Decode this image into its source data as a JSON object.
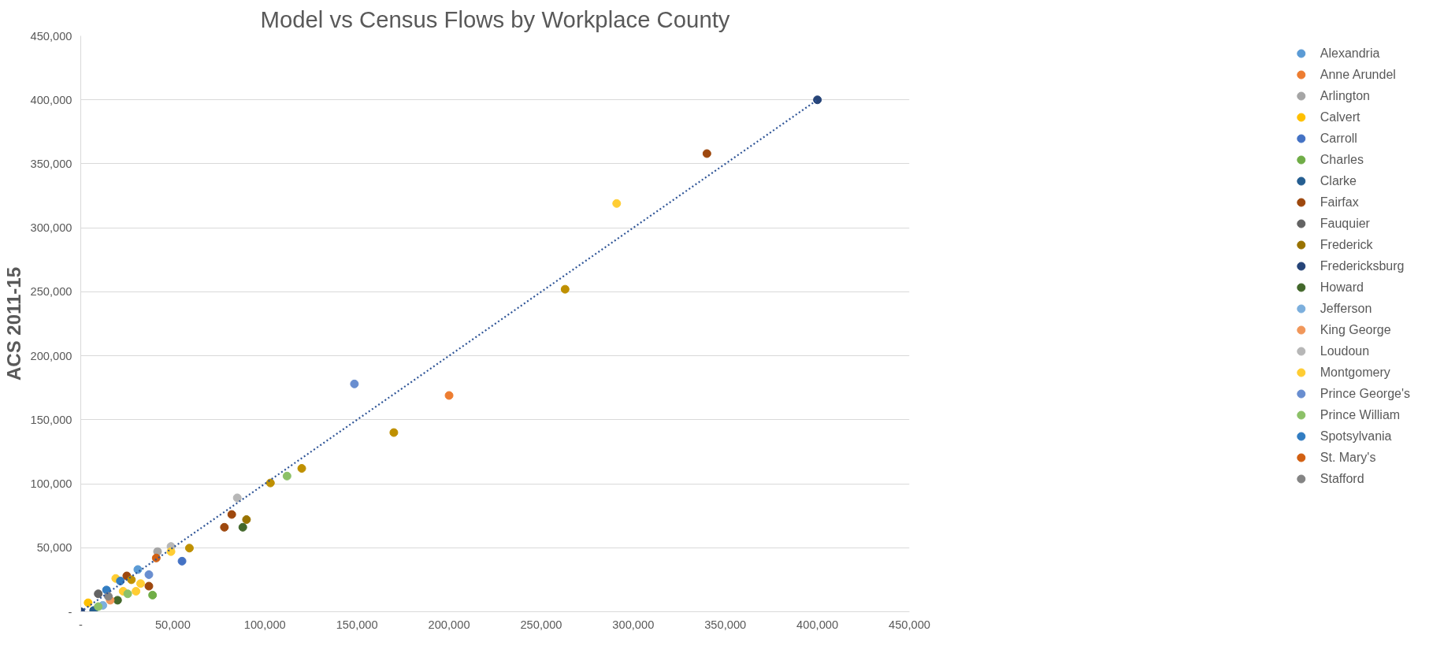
{
  "chart_data": {
    "type": "scatter",
    "title": "Model vs Census Flows by Workplace County",
    "ylabel": "ACS 2011-15",
    "xlim": [
      0,
      450000
    ],
    "ylim": [
      0,
      450000
    ],
    "xticks": [
      {
        "value": 0,
        "label": "-"
      },
      {
        "value": 50000,
        "label": "50,000"
      },
      {
        "value": 100000,
        "label": "100,000"
      },
      {
        "value": 150000,
        "label": "150,000"
      },
      {
        "value": 200000,
        "label": "200,000"
      },
      {
        "value": 250000,
        "label": "250,000"
      },
      {
        "value": 300000,
        "label": "300,000"
      },
      {
        "value": 350000,
        "label": "350,000"
      },
      {
        "value": 400000,
        "label": "400,000"
      },
      {
        "value": 450000,
        "label": "450,000"
      }
    ],
    "yticks": [
      {
        "value": 0,
        "label": "-"
      },
      {
        "value": 50000,
        "label": "50,000"
      },
      {
        "value": 100000,
        "label": "100,000"
      },
      {
        "value": 150000,
        "label": "150,000"
      },
      {
        "value": 200000,
        "label": "200,000"
      },
      {
        "value": 250000,
        "label": "250,000"
      },
      {
        "value": 300000,
        "label": "300,000"
      },
      {
        "value": 350000,
        "label": "350,000"
      },
      {
        "value": 400000,
        "label": "400,000"
      },
      {
        "value": 450000,
        "label": "450,000"
      }
    ],
    "grid": "y",
    "legend": "right",
    "marker": "circle",
    "series": [
      {
        "name": "Alexandria",
        "color": "#5b9bd5",
        "x": [
          31000
        ],
        "values": [
          33000
        ]
      },
      {
        "name": "Anne Arundel",
        "color": "#ed7d31",
        "x": [
          200000
        ],
        "values": [
          169000
        ]
      },
      {
        "name": "Arlington",
        "color": "#a5a5a5",
        "x": [
          41700
        ],
        "values": [
          47000
        ]
      },
      {
        "name": "Calvert",
        "color": "#ffc000",
        "x": [
          4000
        ],
        "values": [
          7000
        ]
      },
      {
        "name": "Carroll",
        "color": "#4472c4",
        "x": [
          55000
        ],
        "values": [
          39500
        ]
      },
      {
        "name": "Charles",
        "color": "#70ad47",
        "x": [
          39000
        ],
        "values": [
          13000
        ]
      },
      {
        "name": "Clarke",
        "color": "#255e91",
        "x": [
          7000
        ],
        "values": [
          1000
        ]
      },
      {
        "name": "Fairfax",
        "color": "#9e480e",
        "x": [
          340000,
          82000,
          78000,
          25000,
          37000
        ],
        "values": [
          358000,
          76000,
          66000,
          28000,
          20000
        ]
      },
      {
        "name": "Fauquier",
        "color": "#636363",
        "x": [
          9500
        ],
        "values": [
          14000
        ]
      },
      {
        "name": "Frederick",
        "color": "#997300",
        "x": [
          90000
        ],
        "values": [
          72000
        ]
      },
      {
        "name": "Fredericksburg",
        "color": "#264478",
        "x": [
          400000,
          0
        ],
        "values": [
          400000,
          0
        ]
      },
      {
        "name": "Howard",
        "color": "#43682b",
        "x": [
          88000,
          20000
        ],
        "values": [
          66000,
          9000
        ]
      },
      {
        "name": "Jefferson",
        "color": "#7cafdd",
        "x": [
          12000
        ],
        "values": [
          5000
        ]
      },
      {
        "name": "King George",
        "color": "#f1975a",
        "x": [
          16000
        ],
        "values": [
          9000
        ]
      },
      {
        "name": "Loudoun",
        "color": "#b7b7b7",
        "x": [
          85000,
          49000
        ],
        "values": [
          89000,
          51000
        ]
      },
      {
        "name": "Montgomery",
        "color": "#ffcd33",
        "x": [
          291000,
          49000,
          19000,
          30000,
          23000,
          32500
        ],
        "values": [
          319000,
          47000,
          26000,
          16000,
          16000,
          22000
        ]
      },
      {
        "name": "Prince George's",
        "color": "#698ed0",
        "x": [
          148600,
          37000
        ],
        "values": [
          178000,
          29000
        ]
      },
      {
        "name": "Prince William",
        "color": "#8cc168",
        "x": [
          112000,
          25500,
          9500
        ],
        "values": [
          106000,
          14000,
          4000
        ]
      },
      {
        "name": "Spotsylvania",
        "color": "#327dc2",
        "x": [
          14000,
          21500
        ],
        "values": [
          17000,
          24000
        ]
      },
      {
        "name": "St. Mary's",
        "color": "#d26012",
        "x": [
          41000
        ],
        "values": [
          42000
        ]
      },
      {
        "name": "Stafford",
        "color": "#848484",
        "x": [
          15000
        ],
        "values": [
          12000
        ]
      },
      {
        "color": "#bf9000",
        "x": [
          263000,
          170000,
          120000,
          103000,
          59000,
          27500
        ],
        "values": [
          252000,
          140000,
          112000,
          100600,
          49700,
          25000
        ]
      },
      {
        "type": "line",
        "line_style": "dotted",
        "marker": "none",
        "color": "#2f5597",
        "x": [
          0,
          400000
        ],
        "values": [
          0,
          400000
        ]
      }
    ]
  }
}
